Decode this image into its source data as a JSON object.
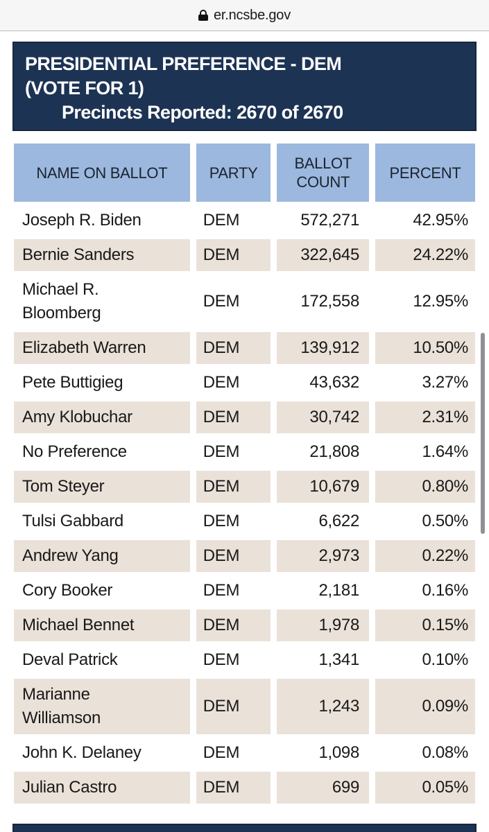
{
  "browser": {
    "address": "er.ncsbe.gov"
  },
  "contest": {
    "title_line1": "PRESIDENTIAL PREFERENCE - DEM",
    "title_line2": "(VOTE FOR 1)",
    "precincts_label": "Precincts Reported: 2670 of 2670"
  },
  "table": {
    "headers": [
      "NAME ON BALLOT",
      "PARTY",
      "BALLOT COUNT",
      "PERCENT"
    ],
    "rows": [
      {
        "name": "Joseph R. Biden",
        "party": "DEM",
        "count": "572,271",
        "percent": "42.95%"
      },
      {
        "name": "Bernie Sanders",
        "party": "DEM",
        "count": "322,645",
        "percent": "24.22%"
      },
      {
        "name": "Michael R. Bloomberg",
        "party": "DEM",
        "count": "172,558",
        "percent": "12.95%"
      },
      {
        "name": "Elizabeth Warren",
        "party": "DEM",
        "count": "139,912",
        "percent": "10.50%"
      },
      {
        "name": "Pete Buttigieg",
        "party": "DEM",
        "count": "43,632",
        "percent": "3.27%"
      },
      {
        "name": "Amy Klobuchar",
        "party": "DEM",
        "count": "30,742",
        "percent": "2.31%"
      },
      {
        "name": "No Preference",
        "party": "DEM",
        "count": "21,808",
        "percent": "1.64%"
      },
      {
        "name": "Tom Steyer",
        "party": "DEM",
        "count": "10,679",
        "percent": "0.80%"
      },
      {
        "name": "Tulsi Gabbard",
        "party": "DEM",
        "count": "6,622",
        "percent": "0.50%"
      },
      {
        "name": "Andrew Yang",
        "party": "DEM",
        "count": "2,973",
        "percent": "0.22%"
      },
      {
        "name": "Cory Booker",
        "party": "DEM",
        "count": "2,181",
        "percent": "0.16%"
      },
      {
        "name": "Michael Bennet",
        "party": "DEM",
        "count": "1,978",
        "percent": "0.15%"
      },
      {
        "name": "Deval Patrick",
        "party": "DEM",
        "count": "1,341",
        "percent": "0.10%"
      },
      {
        "name": "Marianne Williamson",
        "party": "DEM",
        "count": "1,243",
        "percent": "0.09%"
      },
      {
        "name": "John K. Delaney",
        "party": "DEM",
        "count": "1,098",
        "percent": "0.08%"
      },
      {
        "name": "Julian Castro",
        "party": "DEM",
        "count": "699",
        "percent": "0.05%"
      }
    ]
  },
  "colors": {
    "navy": "#1d3354",
    "navy_border": "#16263e",
    "header_blue": "#9cb8de",
    "row_alt": "#eae1d8",
    "scrollbar": "#8f9093"
  }
}
